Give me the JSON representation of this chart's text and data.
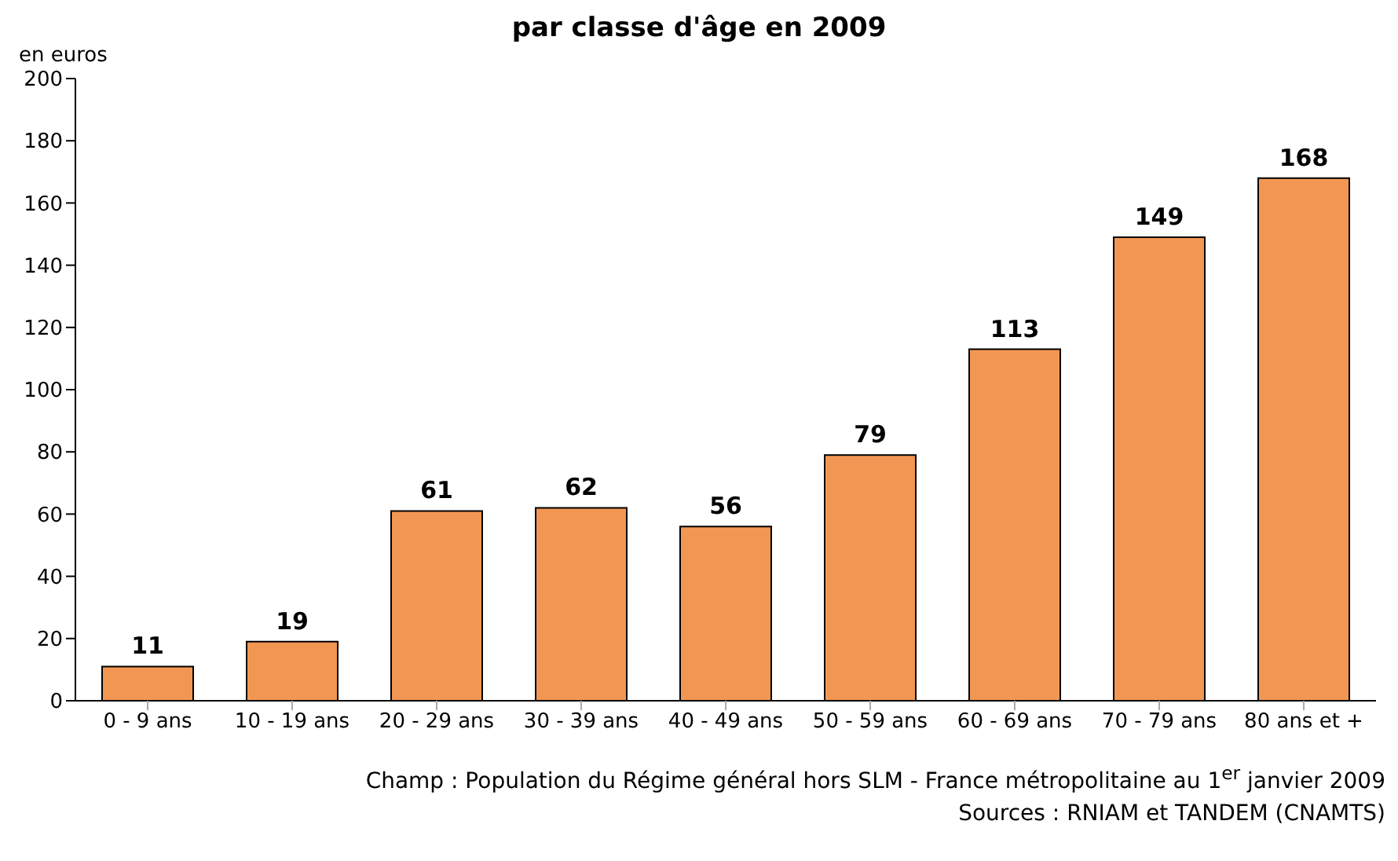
{
  "chart_data": {
    "type": "bar",
    "title": "par classe d'âge en 2009",
    "ylabel": "en euros",
    "categories": [
      "0 - 9 ans",
      "10 - 19 ans",
      "20 - 29 ans",
      "30 - 39 ans",
      "40 - 49 ans",
      "50 - 59 ans",
      "60 - 69 ans",
      "70 - 79 ans",
      "80 ans et +"
    ],
    "values": [
      11,
      19,
      61,
      62,
      56,
      79,
      113,
      149,
      168
    ],
    "color": "#f29753",
    "ylim": [
      0,
      200
    ],
    "yticks": [
      0,
      20,
      40,
      60,
      80,
      100,
      120,
      140,
      160,
      180,
      200
    ],
    "grid": false,
    "data_labels": true,
    "annotations": [
      "Champ : Population du Régime général hors SLM - France métropolitaine au 1$^{er}$ janvier 2009",
      "Sources : RNIAM et TANDEM (CNAMTS)"
    ]
  }
}
